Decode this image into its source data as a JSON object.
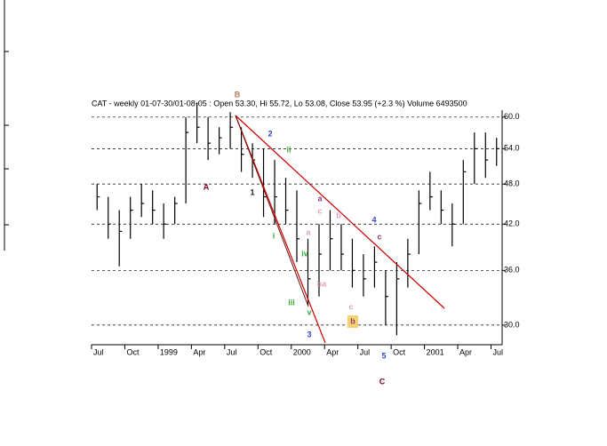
{
  "chart_data": {
    "type": "ohlc",
    "title": "CAT - weekly 01-07-30/01-08-05 : Open 53.30, Hi 55.72, Lo 53.08, Close 53.95 (+2.3 %) Volume 6493500",
    "categories": [
      "Jul",
      null,
      null,
      "Oct",
      null,
      null,
      "1999",
      null,
      null,
      "Apr",
      null,
      null,
      "Jul",
      null,
      null,
      "Oct",
      null,
      null,
      "2000",
      null,
      null,
      "Apr",
      null,
      null,
      "Jul",
      null,
      null,
      "Oct",
      null,
      null,
      "2001",
      null,
      null,
      "Apr",
      null,
      null,
      "Jul"
    ],
    "high": [
      48,
      46,
      44,
      46,
      48,
      47,
      45,
      46,
      60,
      63,
      60,
      58,
      61,
      58,
      55,
      54,
      52,
      49,
      47,
      40,
      42,
      44,
      42,
      40,
      38,
      39,
      36,
      37,
      40,
      47,
      50,
      47,
      45,
      52,
      57,
      57,
      56
    ],
    "low": [
      44,
      40,
      36.5,
      40,
      43,
      42,
      40,
      42,
      45,
      55,
      52,
      53,
      54,
      50,
      49,
      43,
      42,
      42,
      37,
      32,
      33,
      36,
      36,
      34,
      33,
      34,
      30,
      29,
      34,
      38,
      44,
      42,
      39,
      42,
      48,
      49,
      51
    ],
    "close": [
      46,
      42,
      41,
      44,
      45,
      44,
      42,
      45,
      57,
      58,
      55,
      56,
      58,
      53,
      52,
      46,
      46,
      44,
      40,
      35,
      38,
      40,
      38,
      36,
      35,
      37,
      33,
      35,
      38,
      45,
      46,
      44,
      42,
      50,
      54,
      52,
      54
    ],
    "color": "#000000",
    "log_scale": true,
    "ylim": [
      28.1,
      62.5
    ],
    "yticks": [
      {
        "value": 30,
        "label": "30.0"
      },
      {
        "value": 36,
        "label": "36.0"
      },
      {
        "value": 42,
        "label": "42.0"
      },
      {
        "value": 48,
        "label": "48.0"
      },
      {
        "value": 54,
        "label": "54.0"
      },
      {
        "value": 60,
        "label": "60.0"
      }
    ],
    "grid": true,
    "annotations": [
      {
        "text": "B",
        "color": "#b07a50"
      },
      {
        "text": "2",
        "color": "#3344cc"
      },
      {
        "text": "ii",
        "color": "#33aa33"
      },
      {
        "text": "A",
        "color": "#800020"
      },
      {
        "text": "1",
        "color": "#222222"
      },
      {
        "text": "a",
        "color": "#8b3a7a"
      },
      {
        "text": "c",
        "color": "#e0a0c0"
      },
      {
        "text": "b",
        "color": "#e0a0c0"
      },
      {
        "text": "4",
        "color": "#3344cc"
      },
      {
        "text": "c",
        "color": "#8b3a7a"
      },
      {
        "text": "i",
        "color": "#33aa33"
      },
      {
        "text": "a",
        "color": "#e0a0c0"
      },
      {
        "text": "iv",
        "color": "#33aa33"
      },
      {
        "text": "ba",
        "color": "#e0a0c0"
      },
      {
        "text": "iii",
        "color": "#33aa33"
      },
      {
        "text": "v",
        "color": "#33aa33"
      },
      {
        "text": "c",
        "color": "#e0a0c0"
      },
      {
        "text": "b",
        "color": "#8b3a7a"
      },
      {
        "text": "3",
        "color": "#3344cc"
      },
      {
        "text": "5",
        "color": "#3344cc"
      },
      {
        "text": "C",
        "color": "#800020"
      }
    ]
  }
}
